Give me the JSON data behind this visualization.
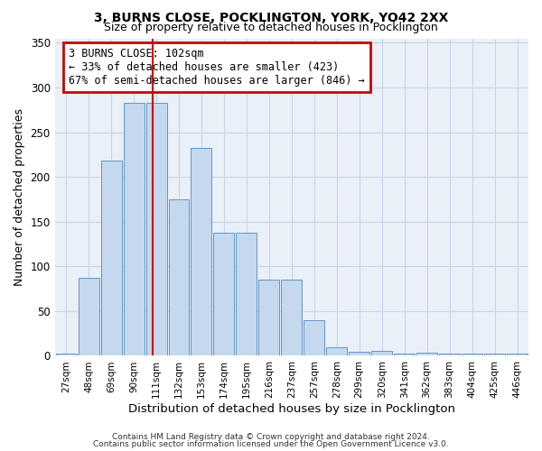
{
  "title1": "3, BURNS CLOSE, POCKLINGTON, YORK, YO42 2XX",
  "title2": "Size of property relative to detached houses in Pocklington",
  "xlabel": "Distribution of detached houses by size in Pocklington",
  "ylabel": "Number of detached properties",
  "bin_labels": [
    "27sqm",
    "48sqm",
    "69sqm",
    "90sqm",
    "111sqm",
    "132sqm",
    "153sqm",
    "174sqm",
    "195sqm",
    "216sqm",
    "237sqm",
    "257sqm",
    "278sqm",
    "299sqm",
    "320sqm",
    "341sqm",
    "362sqm",
    "383sqm",
    "404sqm",
    "425sqm",
    "446sqm"
  ],
  "bar_heights": [
    2,
    87,
    218,
    283,
    283,
    175,
    232,
    138,
    138,
    85,
    85,
    40,
    10,
    4,
    6,
    2,
    3,
    2,
    2,
    2,
    2
  ],
  "bar_color": "#c5d8ed",
  "bar_edge_color": "#6096c8",
  "grid_color": "#c8d4e8",
  "bg_color": "#eaf0f8",
  "vline_x": 3.82,
  "vline_color": "#cc0000",
  "annotation_text": "3 BURNS CLOSE: 102sqm\n← 33% of detached houses are smaller (423)\n67% of semi-detached houses are larger (846) →",
  "annotation_box_color": "#cc0000",
  "ylim": [
    0,
    355
  ],
  "yticks": [
    0,
    50,
    100,
    150,
    200,
    250,
    300,
    350
  ],
  "footer1": "Contains HM Land Registry data © Crown copyright and database right 2024.",
  "footer2": "Contains public sector information licensed under the Open Government Licence v3.0."
}
